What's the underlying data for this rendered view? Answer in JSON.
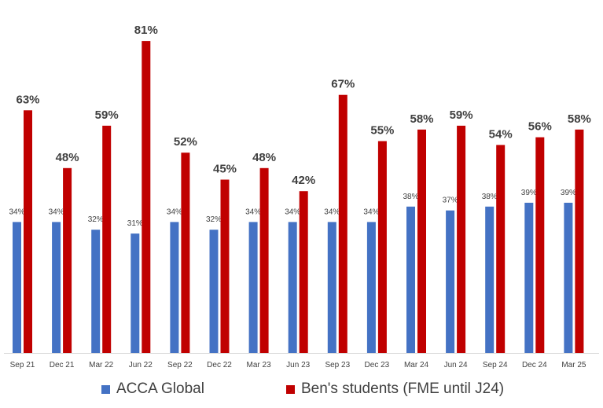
{
  "chart_data": {
    "type": "bar",
    "title": "",
    "xlabel": "",
    "ylabel": "",
    "ylim": [
      0,
      90
    ],
    "grid": false,
    "legend_position": "bottom",
    "categories": [
      "Sep 21",
      "Dec 21",
      "Mar 22",
      "Jun 22",
      "Sep 22",
      "Dec 22",
      "Mar 23",
      "Jun 23",
      "Sep 23",
      "Dec 23",
      "Mar 24",
      "Jun 24",
      "Sep 24",
      "Dec 24",
      "Mar 25"
    ],
    "series": [
      {
        "name": "ACCA Global",
        "color": "#4472C4",
        "values": [
          34,
          34,
          32,
          31,
          34,
          32,
          34,
          34,
          34,
          34,
          38,
          37,
          38,
          39,
          39
        ],
        "labels": [
          "34%",
          "34%",
          "32%",
          "31%",
          "34%",
          "32%",
          "34%",
          "34%",
          "34%",
          "34%",
          "38%",
          "37%",
          "38%",
          "39%",
          "39%"
        ]
      },
      {
        "name": "Ben's students (FME until J24)",
        "color": "#C00000",
        "values": [
          63,
          48,
          59,
          81,
          52,
          45,
          48,
          42,
          67,
          55,
          58,
          59,
          54,
          56,
          58
        ],
        "labels": [
          "63%",
          "48%",
          "59%",
          "81%",
          "52%",
          "45%",
          "48%",
          "42%",
          "67%",
          "55%",
          "58%",
          "59%",
          "54%",
          "56%",
          "58%"
        ]
      }
    ]
  }
}
